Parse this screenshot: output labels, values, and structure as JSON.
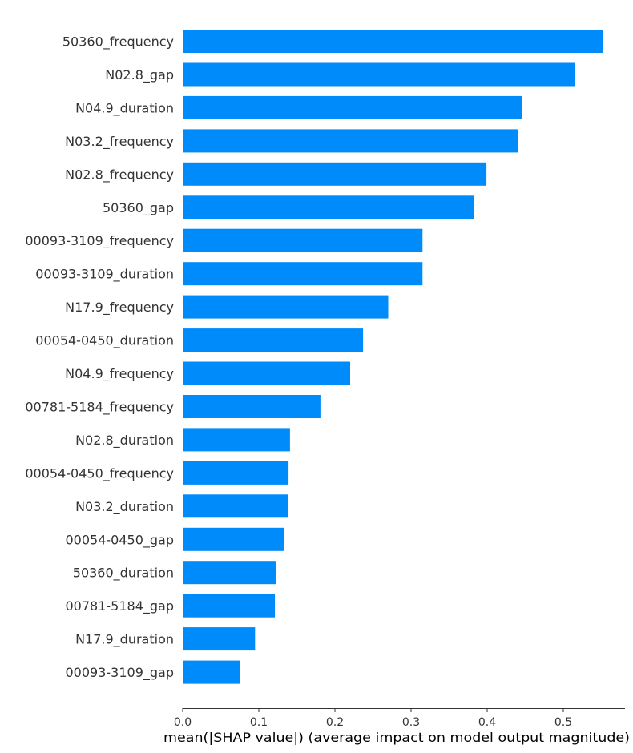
{
  "chart_data": {
    "type": "bar",
    "orientation": "horizontal",
    "title": "",
    "xlabel": "mean(|SHAP value|) (average impact on model output magnitude)",
    "ylabel": "",
    "xlim": [
      0,
      0.58
    ],
    "xticks": [
      0,
      0.1,
      0.2,
      0.3,
      0.4,
      0.5
    ],
    "xtick_labels": [
      "0.0",
      "0.1",
      "0.2",
      "0.3",
      "0.4",
      "0.5"
    ],
    "grid": false,
    "bar_color": "#008bfb",
    "categories": [
      "50360_frequency",
      "N02.8_gap",
      "N04.9_duration",
      "N03.2_frequency",
      "N02.8_frequency",
      "50360_gap",
      "00093-3109_frequency",
      "00093-3109_duration",
      "N17.9_frequency",
      "00054-0450_duration",
      "N04.9_frequency",
      "00781-5184_frequency",
      "N02.8_duration",
      "00054-0450_frequency",
      "N03.2_duration",
      "00054-0450_gap",
      "50360_duration",
      "00781-5184_gap",
      "N17.9_duration",
      "00093-3109_gap"
    ],
    "values": [
      0.552,
      0.515,
      0.446,
      0.44,
      0.399,
      0.383,
      0.315,
      0.315,
      0.27,
      0.237,
      0.22,
      0.181,
      0.141,
      0.139,
      0.138,
      0.133,
      0.123,
      0.121,
      0.095,
      0.075
    ]
  }
}
